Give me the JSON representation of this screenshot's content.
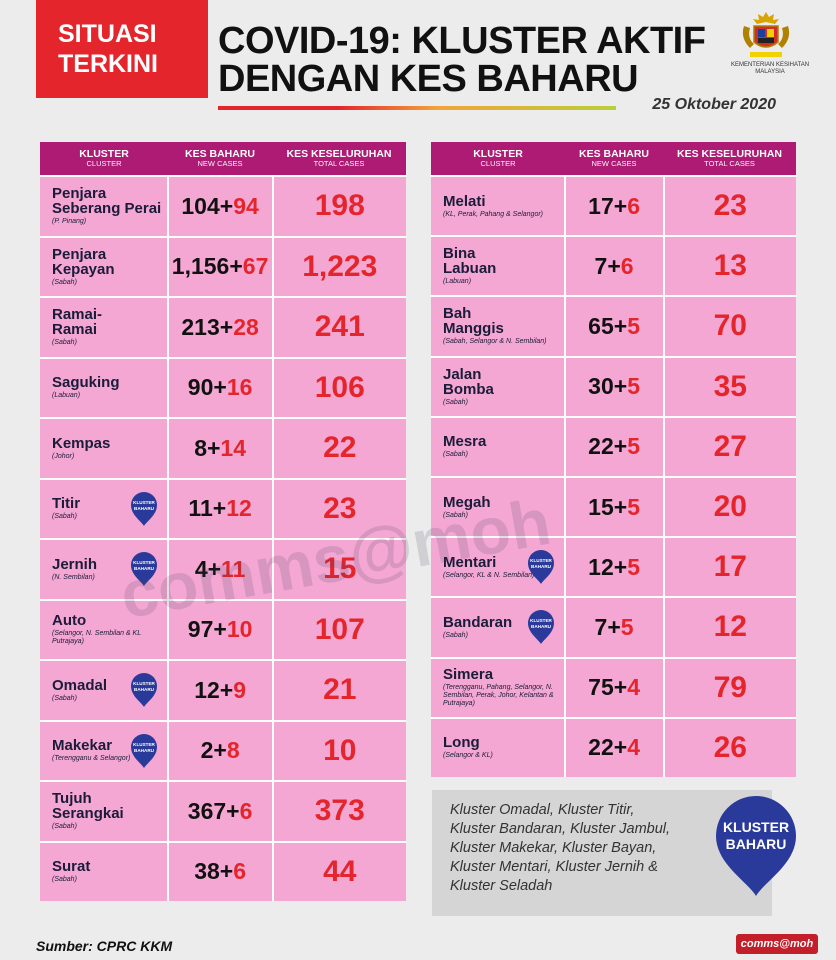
{
  "header": {
    "badge_line1": "SITUASI",
    "badge_line2": "TERKINI",
    "title_line1": "COVID-19: KLUSTER AKTIF",
    "title_line2": "DENGAN KES BAHARU",
    "date": "25 Oktober 2020",
    "ministry_line1": "KEMENTERIAN KESIHATAN",
    "ministry_line2": "MALAYSIA"
  },
  "columns": {
    "cluster": "KLUSTER",
    "cluster_en": "CLUSTER",
    "new": "KES BAHARU",
    "new_en": "NEW CASES",
    "total": "KES KESELURUHAN",
    "total_en": "TOTAL CASES"
  },
  "left_rows": [
    {
      "name1": "Penjara",
      "name2": "Seberang Perai",
      "state": "(P. Pinang)",
      "base": "104",
      "add": "94",
      "total": "198",
      "new_badge": false
    },
    {
      "name1": "Penjara",
      "name2": "Kepayan",
      "state": "(Sabah)",
      "base": "1,156",
      "add": "67",
      "total": "1,223",
      "new_badge": false
    },
    {
      "name1": "Ramai-",
      "name2": "Ramai",
      "state": "(Sabah)",
      "base": "213",
      "add": "28",
      "total": "241",
      "new_badge": false
    },
    {
      "name1": "Saguking",
      "name2": "",
      "state": "(Labuan)",
      "base": "90",
      "add": "16",
      "total": "106",
      "new_badge": false
    },
    {
      "name1": "Kempas",
      "name2": "",
      "state": "(Johor)",
      "base": "8",
      "add": "14",
      "total": "22",
      "new_badge": false
    },
    {
      "name1": "Titir",
      "name2": "",
      "state": "(Sabah)",
      "base": "11",
      "add": "12",
      "total": "23",
      "new_badge": true
    },
    {
      "name1": "Jernih",
      "name2": "",
      "state": "(N. Sembilan)",
      "base": "4",
      "add": "11",
      "total": "15",
      "new_badge": true
    },
    {
      "name1": "Auto",
      "name2": "",
      "state": "(Selangor, N. Sembilan & KL Putrajaya)",
      "base": "97",
      "add": "10",
      "total": "107",
      "new_badge": false
    },
    {
      "name1": "Omadal",
      "name2": "",
      "state": "(Sabah)",
      "base": "12",
      "add": "9",
      "total": "21",
      "new_badge": true
    },
    {
      "name1": "Makekar",
      "name2": "",
      "state": "(Terengganu & Selangor)",
      "base": "2",
      "add": "8",
      "total": "10",
      "new_badge": true
    },
    {
      "name1": "Tujuh",
      "name2": "Serangkai",
      "state": "(Sabah)",
      "base": "367",
      "add": "6",
      "total": "373",
      "new_badge": false
    },
    {
      "name1": "Surat",
      "name2": "",
      "state": "(Sabah)",
      "base": "38",
      "add": "6",
      "total": "44",
      "new_badge": false
    }
  ],
  "right_rows": [
    {
      "name1": "Melati",
      "name2": "",
      "state": "(KL, Perak, Pahang & Selangor)",
      "base": "17",
      "add": "6",
      "total": "23",
      "new_badge": false
    },
    {
      "name1": "Bina",
      "name2": "Labuan",
      "state": "(Labuan)",
      "base": "7",
      "add": "6",
      "total": "13",
      "new_badge": false
    },
    {
      "name1": "Bah",
      "name2": "Manggis",
      "state": "(Sabah, Selangor & N. Sembilan)",
      "base": "65",
      "add": "5",
      "total": "70",
      "new_badge": false
    },
    {
      "name1": "Jalan",
      "name2": "Bomba",
      "state": "(Sabah)",
      "base": "30",
      "add": "5",
      "total": "35",
      "new_badge": false
    },
    {
      "name1": "Mesra",
      "name2": "",
      "state": "(Sabah)",
      "base": "22",
      "add": "5",
      "total": "27",
      "new_badge": false
    },
    {
      "name1": "Megah",
      "name2": "",
      "state": "(Sabah)",
      "base": "15",
      "add": "5",
      "total": "20",
      "new_badge": false
    },
    {
      "name1": "Mentari",
      "name2": "",
      "state": "(Selangor, KL & N. Sembilan)",
      "base": "12",
      "add": "5",
      "total": "17",
      "new_badge": true
    },
    {
      "name1": "Bandaran",
      "name2": "",
      "state": "(Sabah)",
      "base": "7",
      "add": "5",
      "total": "12",
      "new_badge": true
    },
    {
      "name1": "Simera",
      "name2": "",
      "state": "(Terengganu, Pahang, Selangor, N. Sembilan, Perak, Johor, Kelantan & Putrajaya)",
      "base": "75",
      "add": "4",
      "total": "79",
      "new_badge": false
    },
    {
      "name1": "Long",
      "name2": "",
      "state": "(Selangor & KL)",
      "base": "22",
      "add": "4",
      "total": "26",
      "new_badge": false
    }
  ],
  "small_badge": {
    "line1": "KLUSTER",
    "line2": "BAHARU"
  },
  "note": {
    "lines": [
      "Kluster Omadal, Kluster Titir,",
      "Kluster Bandaran, Kluster Jambul,",
      "Kluster Makekar, Kluster Bayan,",
      "Kluster Mentari, Kluster Jernih &",
      "Kluster Seladah"
    ],
    "badge_line1": "KLUSTER",
    "badge_line2": "BAHARU"
  },
  "footer": {
    "source": "Sumber: CPRC KKM",
    "handle": "comms@moh"
  },
  "watermark": "comms@moh",
  "colors": {
    "header_red": "#e4252b",
    "table_header": "#ad1b74",
    "cell_pink": "#f4a7d3",
    "badge_blue": "#2a3a9a"
  }
}
